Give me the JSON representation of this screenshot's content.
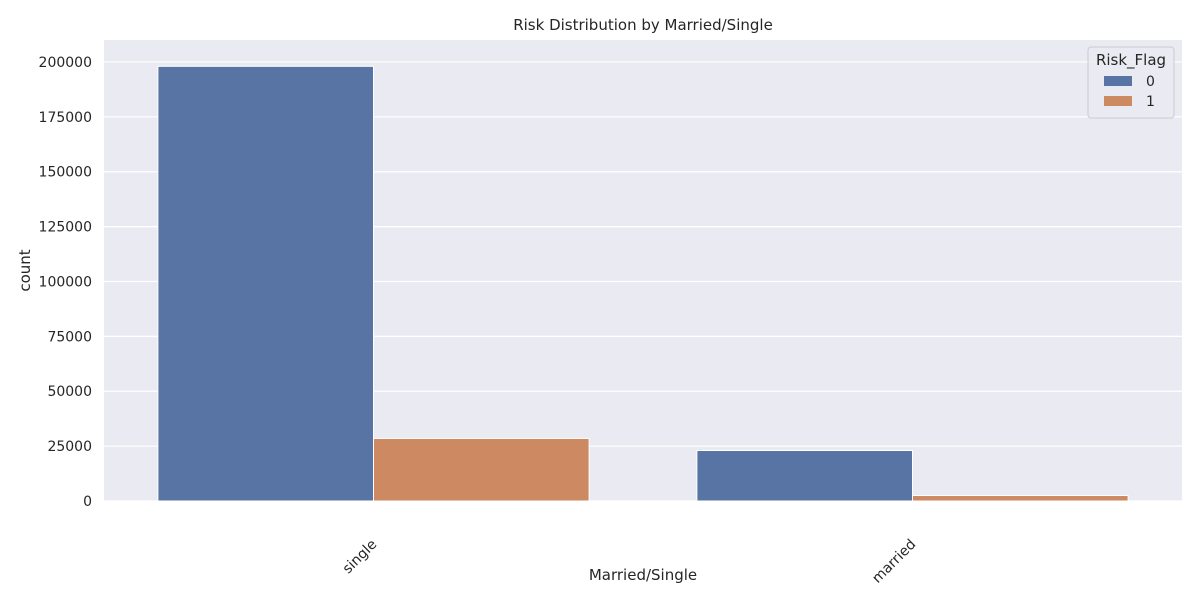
{
  "chart_data": {
    "type": "bar",
    "title": "Risk Distribution by Married/Single",
    "xlabel": "Married/Single",
    "ylabel": "count",
    "categories": [
      "single",
      "married"
    ],
    "series": [
      {
        "name": "0",
        "values": [
          198000,
          23000
        ]
      },
      {
        "name": "1",
        "values": [
          28500,
          2500
        ]
      }
    ],
    "ylim": [
      0,
      210000
    ],
    "yticks": [
      0,
      25000,
      50000,
      75000,
      100000,
      125000,
      150000,
      175000,
      200000
    ],
    "grid": true,
    "legend": {
      "title": "Risk_Flag",
      "placement": "top-right"
    },
    "colors": {
      "0": "#5874a4",
      "1": "#cd8a62",
      "background": "#eaeaf2",
      "grid": "#ffffff"
    }
  }
}
